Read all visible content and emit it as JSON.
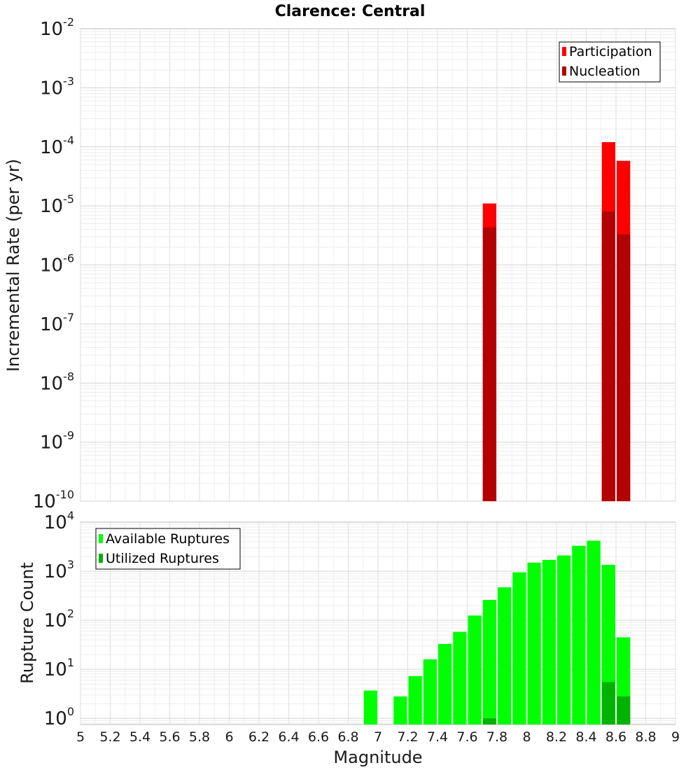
{
  "chart_data": [
    {
      "type": "bar",
      "title": "Clarence: Central",
      "ylabel": "Incremental Rate (per yr)",
      "xlabel": "",
      "xlim": [
        5,
        9
      ],
      "ylim": [
        1e-10,
        0.01
      ],
      "yscale": "log",
      "grid": true,
      "legend_position": "top-right",
      "series": [
        {
          "name": "Participation",
          "color": "#ff0000",
          "x": [
            7.75,
            8.55,
            8.65
          ],
          "values": [
            1.1e-05,
            0.00012,
            5.8e-05
          ]
        },
        {
          "name": "Nucleation",
          "color": "#b30000",
          "x": [
            7.75,
            8.55,
            8.65
          ],
          "values": [
            4.3e-06,
            8e-06,
            3.3e-06
          ]
        }
      ],
      "y_ticks": [
        {
          "base": "10",
          "exp": "-2",
          "value": 0.01
        },
        {
          "base": "10",
          "exp": "-3",
          "value": 0.001
        },
        {
          "base": "10",
          "exp": "-4",
          "value": 0.0001
        },
        {
          "base": "10",
          "exp": "-5",
          "value": 1e-05
        },
        {
          "base": "10",
          "exp": "-6",
          "value": 1e-06
        },
        {
          "base": "10",
          "exp": "-7",
          "value": 1e-07
        },
        {
          "base": "10",
          "exp": "-8",
          "value": 1e-08
        },
        {
          "base": "10",
          "exp": "-9",
          "value": 1e-09
        },
        {
          "base": "10",
          "exp": "-10",
          "value": 1e-10
        }
      ]
    },
    {
      "type": "bar",
      "title": "",
      "ylabel": "Rupture Count",
      "xlabel": "Magnitude",
      "xlim": [
        5,
        9
      ],
      "ylim": [
        0.75,
        10000
      ],
      "yscale": "log",
      "grid": true,
      "legend_position": "top-left",
      "series": [
        {
          "name": "Available Ruptures",
          "color": "#00ff00",
          "x": [
            6.95,
            7.15,
            7.25,
            7.35,
            7.45,
            7.55,
            7.65,
            7.75,
            7.85,
            7.95,
            8.05,
            8.15,
            8.25,
            8.35,
            8.45,
            8.55,
            8.65
          ],
          "values": [
            3.7,
            2.8,
            7.3,
            16,
            33,
            58,
            125,
            260,
            470,
            950,
            1500,
            1700,
            2100,
            3300,
            4200,
            1350,
            45
          ]
        },
        {
          "name": "Utilized Ruptures",
          "color": "#00b300",
          "x": [
            7.75,
            8.55,
            8.65
          ],
          "values": [
            1,
            5.5,
            2.8
          ]
        }
      ],
      "x_ticks": [
        "5",
        "5.2",
        "5.4",
        "5.6",
        "5.8",
        "6",
        "6.2",
        "6.4",
        "6.6",
        "6.8",
        "7",
        "7.2",
        "7.4",
        "7.6",
        "7.8",
        "8",
        "8.2",
        "8.4",
        "8.6",
        "8.8",
        "9"
      ],
      "y_ticks": [
        {
          "base": "10",
          "exp": "4",
          "value": 10000
        },
        {
          "base": "10",
          "exp": "3",
          "value": 1000
        },
        {
          "base": "10",
          "exp": "2",
          "value": 100
        },
        {
          "base": "10",
          "exp": "1",
          "value": 10
        },
        {
          "base": "10",
          "exp": "0",
          "value": 1
        }
      ]
    }
  ]
}
